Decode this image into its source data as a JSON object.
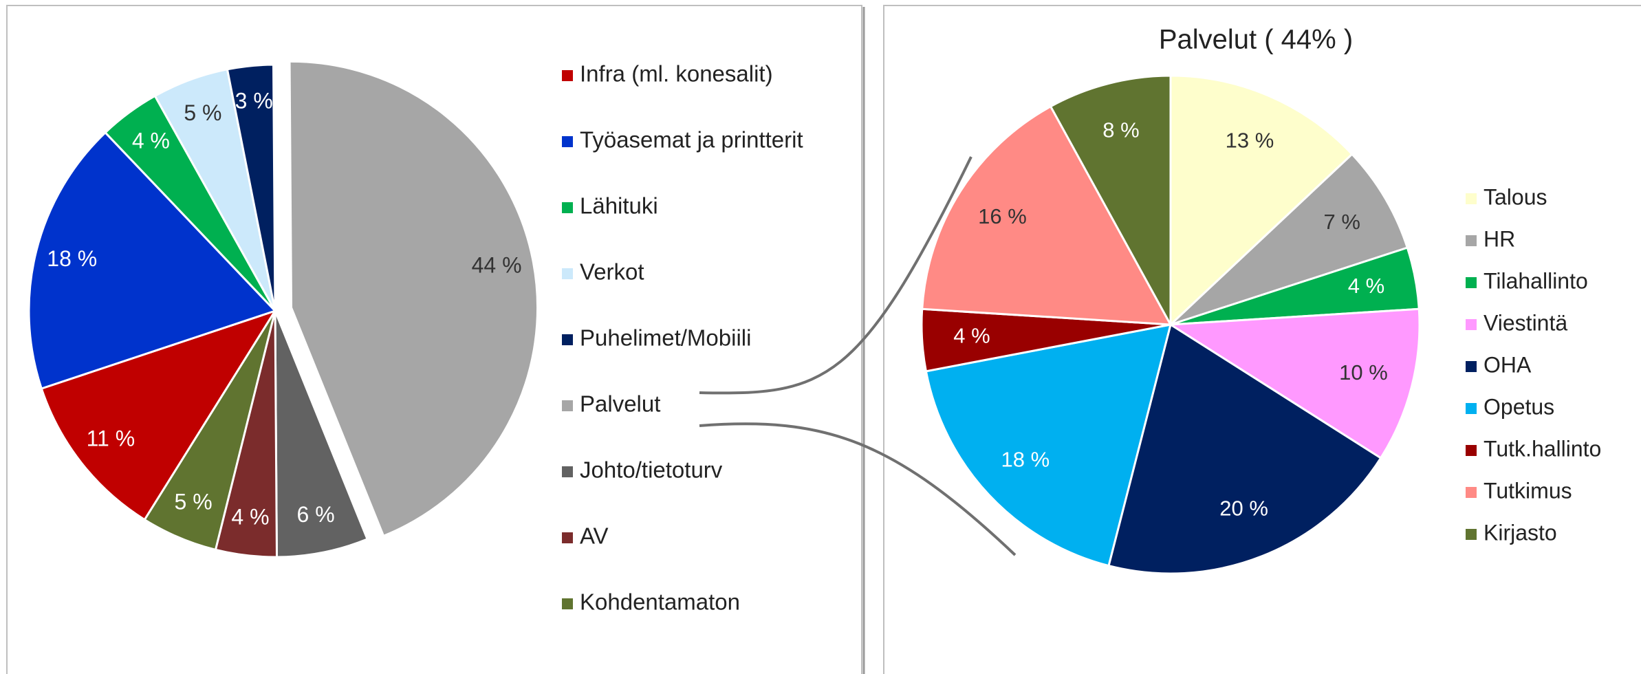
{
  "chart_data": [
    {
      "type": "pie",
      "categories": [
        "Infra (ml. konesalit)",
        "Työasemat ja printterit",
        "Lähituki",
        "Verkot",
        "Puhelimet/Mobiili",
        "Palvelut",
        "Johto/tietoturv",
        "AV",
        "Kohdentamaton"
      ],
      "values": [
        11,
        18,
        4,
        5,
        3,
        44,
        6,
        4,
        5
      ],
      "value_labels": [
        "11 %",
        "18 %",
        "4 %",
        "5 %",
        "3 %",
        "44 %",
        "6 %",
        "4 %",
        "5 %"
      ],
      "colors": [
        "#c00000",
        "#0033cc",
        "#00b050",
        "#cce9fb",
        "#002060",
        "#a6a6a6",
        "#626262",
        "#7b2c2c",
        "#607430"
      ],
      "legend": "right"
    },
    {
      "type": "pie",
      "title": "Palvelut ( 44% )",
      "categories": [
        "Talous",
        "HR",
        "Tilahallinto",
        "Viestintä",
        "OHA",
        "Opetus",
        "Tutk.hallinto",
        "Tutkimus",
        "Kirjasto"
      ],
      "values": [
        13,
        7,
        4,
        10,
        20,
        18,
        4,
        16,
        8
      ],
      "value_labels": [
        "13 %",
        "7 %",
        "4 %",
        "10 %",
        "20 %",
        "18 %",
        "4 %",
        "16 %",
        "8 %"
      ],
      "colors": [
        "#fefecc",
        "#a6a6a6",
        "#00b050",
        "#ff99ff",
        "#002060",
        "#00b0f0",
        "#990000",
        "#ff8a85",
        "#607430"
      ],
      "legend": "right"
    }
  ]
}
